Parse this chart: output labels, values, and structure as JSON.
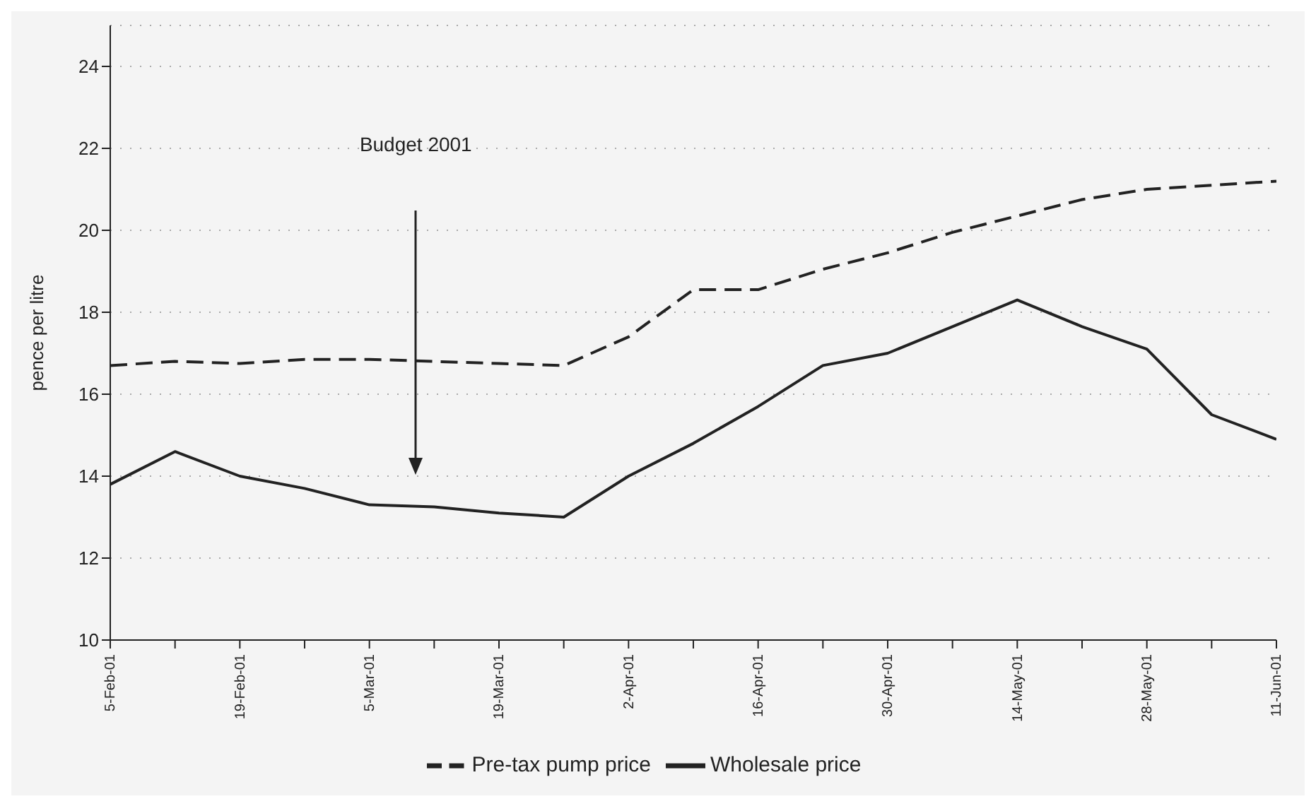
{
  "chart_data": {
    "type": "line",
    "ylabel": "pence per litre",
    "categories": [
      "5-Feb-01",
      null,
      "19-Feb-01",
      null,
      "5-Mar-01",
      null,
      "19-Mar-01",
      null,
      "2-Apr-01",
      null,
      "16-Apr-01",
      null,
      "30-Apr-01",
      null,
      "14-May-01",
      null,
      "28-May-01",
      null,
      "11-Jun-01"
    ],
    "series": [
      {
        "name": "Pre-tax pump price",
        "color": "#222222",
        "line_style": "dashed",
        "values": [
          16.7,
          16.8,
          16.75,
          16.85,
          16.85,
          16.8,
          16.75,
          16.7,
          17.4,
          18.55,
          18.55,
          19.05,
          19.45,
          19.95,
          20.35,
          20.75,
          21.0,
          21.1,
          21.2
        ]
      },
      {
        "name": "Wholesale price",
        "color": "#222222",
        "line_style": "solid",
        "values": [
          13.8,
          14.6,
          14.0,
          13.7,
          13.3,
          13.25,
          13.1,
          13.0,
          14.0,
          14.8,
          15.7,
          16.7,
          17.0,
          17.65,
          18.3,
          17.65,
          17.1,
          15.5,
          14.9
        ]
      }
    ],
    "ylim": [
      10,
      25
    ],
    "yticks": [
      10,
      12,
      14,
      16,
      18,
      20,
      22,
      24
    ],
    "grid": "y",
    "legend": "bottom",
    "marker": "none",
    "annotations": [
      "Budget 2001"
    ]
  }
}
